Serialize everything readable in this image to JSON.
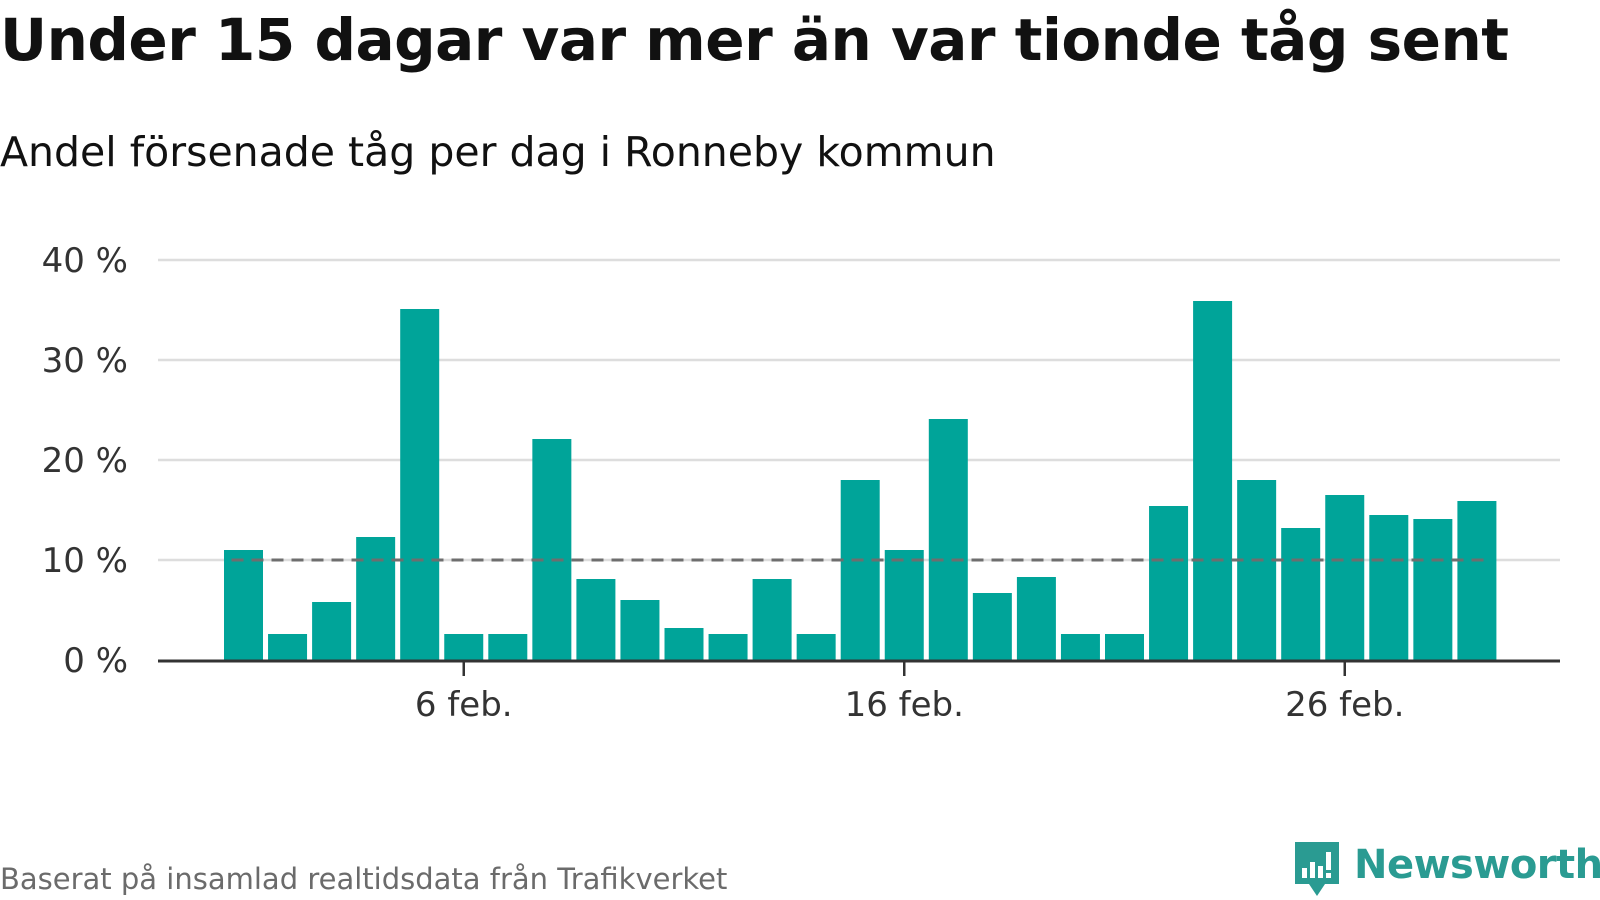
{
  "title": "Under 15 dagar var mer än var tionde tåg sent",
  "subtitle": "Andel försenade tåg per dag i Ronneby kommun",
  "source": "Baserat på insamlad realtidsdata från Trafikverket",
  "brand": {
    "name": "Newsworthy",
    "icon": "newsworthy-logo-icon",
    "color": "#2a9b92"
  },
  "colors": {
    "bar": "#00a499",
    "threshold": "#6e6e6e",
    "grid": "#dddddd",
    "axis": "#333333"
  },
  "chart_data": {
    "type": "bar",
    "title": "Under 15 dagar var mer än var tionde tåg sent",
    "subtitle": "Andel försenade tåg per dag i Ronneby kommun",
    "categories": [
      "1 feb.",
      "2 feb.",
      "3 feb.",
      "4 feb.",
      "5 feb.",
      "6 feb.",
      "7 feb.",
      "8 feb.",
      "9 feb.",
      "10 feb.",
      "11 feb.",
      "12 feb.",
      "13 feb.",
      "14 feb.",
      "15 feb.",
      "16 feb.",
      "17 feb.",
      "18 feb.",
      "19 feb.",
      "20 feb.",
      "21 feb.",
      "22 feb.",
      "23 feb.",
      "24 feb.",
      "25 feb.",
      "26 feb.",
      "27 feb.",
      "28 feb.",
      "29 feb."
    ],
    "values": [
      11.0,
      2.6,
      5.8,
      12.3,
      35.1,
      2.6,
      2.6,
      22.1,
      8.1,
      6.0,
      3.2,
      2.6,
      8.1,
      2.6,
      18.0,
      11.0,
      24.1,
      6.7,
      8.3,
      2.6,
      2.6,
      15.4,
      35.9,
      18.0,
      13.2,
      16.5,
      14.5,
      14.1,
      15.9
    ],
    "unit": "%",
    "ylim": [
      0,
      40
    ],
    "yticks": [
      0,
      10,
      20,
      30,
      40
    ],
    "ytick_labels": [
      "0 %",
      "10 %",
      "20 %",
      "30 %",
      "40 %"
    ],
    "xtick_labels": [
      {
        "category": "6 feb.",
        "label": "6 feb."
      },
      {
        "category": "16 feb.",
        "label": "16 feb."
      },
      {
        "category": "26 feb.",
        "label": "26 feb."
      }
    ],
    "reference_line": {
      "value": 10,
      "style": "dashed"
    },
    "grid": true,
    "legend": "none",
    "xlabel": "",
    "ylabel": ""
  }
}
